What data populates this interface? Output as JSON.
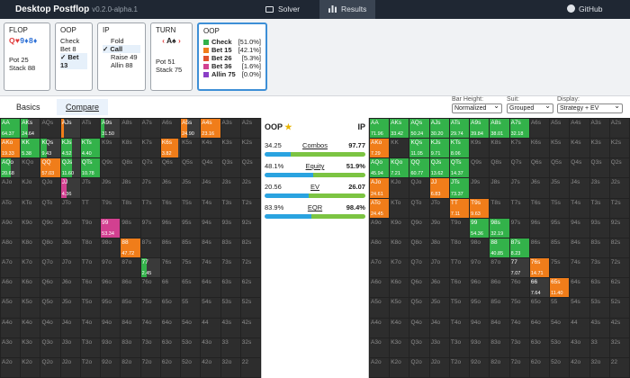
{
  "app": {
    "title": "Desktop Postflop",
    "version": "v0.2.0-alpha.1"
  },
  "nav": {
    "solver": "Solver",
    "results": "Results",
    "github": "GitHub"
  },
  "flop": {
    "label": "FLOP",
    "cards": [
      {
        "r": "Q",
        "s": "♥",
        "c": "red"
      },
      {
        "r": "9",
        "s": "♦",
        "c": "blu"
      },
      {
        "r": "8",
        "s": "♦",
        "c": "blu"
      }
    ],
    "pot": "Pot 25",
    "stack": "Stack 88"
  },
  "oop1": {
    "label": "OOP",
    "actions": [
      "Check",
      "Bet 8",
      "Bet 13"
    ],
    "selected": "Bet 13"
  },
  "ip": {
    "label": "IP",
    "actions": [
      "Fold",
      "Call",
      "Raise 49",
      "Allin 88"
    ],
    "selected": "Call"
  },
  "turn": {
    "label": "TURN",
    "card": "A♠",
    "pot": "Pot 51",
    "stack": "Stack 75"
  },
  "oop2": {
    "label": "OOP",
    "actions": [
      {
        "name": "Check",
        "pct": "[51.0%]",
        "color": "#33b24a"
      },
      {
        "name": "Bet 15",
        "pct": "[42.1%]",
        "color": "#f07d1a"
      },
      {
        "name": "Bet 26",
        "pct": "[5.3%]",
        "color": "#e0502c"
      },
      {
        "name": "Bet 36",
        "pct": "[1.6%]",
        "color": "#d24090"
      },
      {
        "name": "Allin 75",
        "pct": "[0.0%]",
        "color": "#8b3ec6"
      }
    ]
  },
  "tabs": {
    "basics": "Basics",
    "compare": "Compare"
  },
  "controls": {
    "bar_height": {
      "label": "Bar Height:",
      "value": "Normalized"
    },
    "suit": {
      "label": "Suit:",
      "value": "Grouped"
    },
    "display": {
      "label": "Display:",
      "value": "Strategy + EV"
    }
  },
  "center": {
    "left": "OOP",
    "right": "IP",
    "rows": [
      {
        "name": "Combos",
        "left": "34.25",
        "right": "97.77",
        "frac": 0.26
      },
      {
        "name": "Equity",
        "left": "48.1%",
        "right": "51.9%",
        "frac": 0.48
      },
      {
        "name": "EV",
        "left": "20.56",
        "right": "26.07",
        "frac": 0.44
      },
      {
        "name": "EQR",
        "left": "83.9%",
        "right": "98.4%",
        "frac": 0.46
      }
    ]
  },
  "ranks": [
    "A",
    "K",
    "Q",
    "J",
    "T",
    "9",
    "8",
    "7",
    "6",
    "5",
    "4",
    "3",
    "2"
  ],
  "left_cells": [
    {
      "h": "AA",
      "ev": "64.37",
      "c": "#33b24a",
      "w": 1
    },
    {
      "h": "AKs",
      "ev": "24.64",
      "c": "#33b24a",
      "w": 0.35
    },
    {
      "h": "AJs",
      "ev": "",
      "c": "#f07d1a",
      "w": 0.15
    },
    {
      "h": "A9s",
      "ev": "31.50",
      "c": "#33b24a",
      "w": 0.2
    },
    {
      "h": "A5s",
      "ev": "24.90",
      "c": "#f07d1a",
      "w": 0.35
    },
    {
      "h": "A4s",
      "ev": "23.16",
      "c": "#f07d1a",
      "w": 1
    },
    {
      "h": "AKo",
      "ev": "19.33",
      "c": "#f07d1a",
      "w": 1
    },
    {
      "h": "KK",
      "ev": "5.38",
      "c": "#33b24a",
      "w": 1
    },
    {
      "h": "KQs",
      "ev": "9.43",
      "c": "#33b24a",
      "w": 0.3
    },
    {
      "h": "KJs",
      "ev": "4.52",
      "c": "#33b24a",
      "w": 0.6
    },
    {
      "h": "KTs",
      "ev": "4.40",
      "c": "#33b24a",
      "w": 1
    },
    {
      "h": "K6s",
      "ev": "3.82",
      "c": "#f07d1a",
      "w": 0.9
    },
    {
      "h": "AQo",
      "ev": "20.68",
      "c": "#33b24a",
      "w": 0.5
    },
    {
      "h": "QQ",
      "ev": "57.03",
      "c": "#f07d1a",
      "w": 1
    },
    {
      "h": "QJs",
      "ev": "11.60",
      "c": "#33b24a",
      "w": 0.6
    },
    {
      "h": "QTs",
      "ev": "10.78",
      "c": "#33b24a",
      "w": 1
    },
    {
      "h": "JJ",
      "ev": "4.36",
      "c": "#d24090",
      "w": 0.3
    },
    {
      "h": "99",
      "ev": "53.34",
      "c": "#d24090",
      "w": 1
    },
    {
      "h": "88",
      "ev": "47.72",
      "c": "#f07d1a",
      "w": 1
    },
    {
      "h": "77",
      "ev": "2.45",
      "c": "#33b24a",
      "w": 0.3
    }
  ],
  "right_cells": [
    {
      "h": "AA",
      "ev": "71.96",
      "c": "#33b24a",
      "w": 1
    },
    {
      "h": "AKs",
      "ev": "33.42",
      "c": "#33b24a",
      "w": 1
    },
    {
      "h": "AQs",
      "ev": "50.24",
      "c": "#33b24a",
      "w": 1
    },
    {
      "h": "AJs",
      "ev": "30.20",
      "c": "#33b24a",
      "w": 1
    },
    {
      "h": "ATs",
      "ev": "29.74",
      "c": "#33b24a",
      "w": 1
    },
    {
      "h": "A9s",
      "ev": "39.84",
      "c": "#33b24a",
      "w": 1
    },
    {
      "h": "A8s",
      "ev": "38.01",
      "c": "#33b24a",
      "w": 1
    },
    {
      "h": "A7s",
      "ev": "32.18",
      "c": "#33b24a",
      "w": 1
    },
    {
      "h": "AKo",
      "ev": "7.29",
      "c": "#f07d1a",
      "w": 1
    },
    {
      "h": "KQs",
      "ev": "11.05",
      "c": "#33b24a",
      "w": 1
    },
    {
      "h": "KJs",
      "ev": "9.71",
      "c": "#33b24a",
      "w": 1
    },
    {
      "h": "KTs",
      "ev": "8.06",
      "c": "#33b24a",
      "w": 1
    },
    {
      "h": "AQo",
      "ev": "45.94",
      "c": "#33b24a",
      "w": 1
    },
    {
      "h": "KQo",
      "ev": "7.21",
      "c": "#33b24a",
      "w": 1
    },
    {
      "h": "QQ",
      "ev": "60.77",
      "c": "#33b24a",
      "w": 1
    },
    {
      "h": "QJs",
      "ev": "13.62",
      "c": "#33b24a",
      "w": 1
    },
    {
      "h": "QTs",
      "ev": "14.37",
      "c": "#33b24a",
      "w": 1
    },
    {
      "h": "AJo",
      "ev": "24.61",
      "c": "#f07d1a",
      "w": 1
    },
    {
      "h": "JJ",
      "ev": "6.83",
      "c": "#f07d1a",
      "w": 1
    },
    {
      "h": "JTs",
      "ev": "73.37",
      "c": "#33b24a",
      "w": 1
    },
    {
      "h": "ATo",
      "ev": "24.45",
      "c": "#f07d1a",
      "w": 1
    },
    {
      "h": "TT",
      "ev": "7.11",
      "c": "#f07d1a",
      "w": 1
    },
    {
      "h": "T9s",
      "ev": "9.63",
      "c": "#f07d1a",
      "w": 1
    },
    {
      "h": "99",
      "ev": "54.36",
      "c": "#33b24a",
      "w": 1
    },
    {
      "h": "98s",
      "ev": "32.19",
      "c": "#33b24a",
      "w": 1
    },
    {
      "h": "88",
      "ev": "40.85",
      "c": "#33b24a",
      "w": 1
    },
    {
      "h": "87s",
      "ev": "8.23",
      "c": "#33b24a",
      "w": 1
    },
    {
      "h": "77",
      "ev": "7.07",
      "c": "#33b24a",
      "w": 0
    },
    {
      "h": "76s",
      "ev": "14.71",
      "c": "#f07d1a",
      "w": 1
    },
    {
      "h": "66",
      "ev": "7.64",
      "c": "#33b24a",
      "w": 0
    },
    {
      "h": "65s",
      "ev": "11.40",
      "c": "#f07d1a",
      "w": 1
    }
  ]
}
